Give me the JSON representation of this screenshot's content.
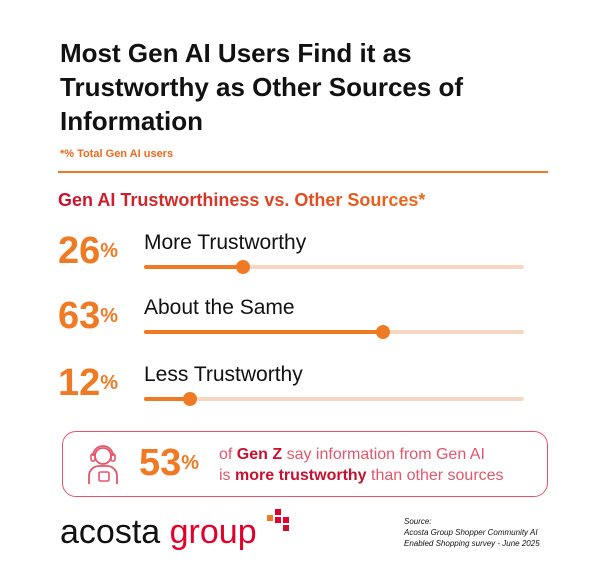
{
  "title": "Most Gen AI Users Find it as Trustworthy as Other Sources of Information",
  "subtitle": "*% Total Gen AI users",
  "chart_data": {
    "type": "bar",
    "title": "Gen AI Trustworthiness vs. Other Sources*",
    "categories": [
      "More Trustworthy",
      "About the Same",
      "Less Trustworthy"
    ],
    "values": [
      26,
      63,
      12
    ],
    "value_labels": [
      "26",
      "63",
      "12"
    ],
    "unit": "%",
    "xlim": [
      0,
      100
    ]
  },
  "callout": {
    "value": "53",
    "unit": "%",
    "line1_prefix": "of ",
    "line1_bold": "Gen Z",
    "line1_suffix": " say information from Gen AI",
    "line2_prefix": "is ",
    "line2_bold": "more trustworthy",
    "line2_suffix": " than other sources",
    "icon": "person-headset-icon"
  },
  "logo": {
    "word1": "acosta",
    "word2": "group"
  },
  "source": {
    "label": "Source:",
    "line1": "Acosta Group Shopper Community AI",
    "line2": "Enabled Shopping survey - June 2025"
  },
  "colors": {
    "accent": "#f07a23",
    "track": "#f8d7c2",
    "brand_red": "#e4002b",
    "callout_border": "#e4566b"
  }
}
